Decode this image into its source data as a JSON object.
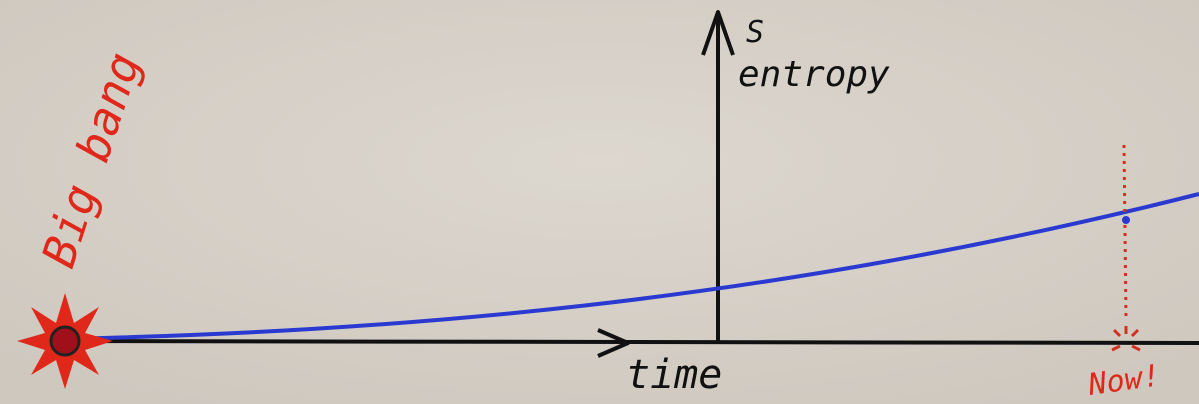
{
  "labels": {
    "big_bang": "Big bang",
    "s": "S",
    "entropy": "entropy",
    "time": "time",
    "now": "Now!"
  }
}
